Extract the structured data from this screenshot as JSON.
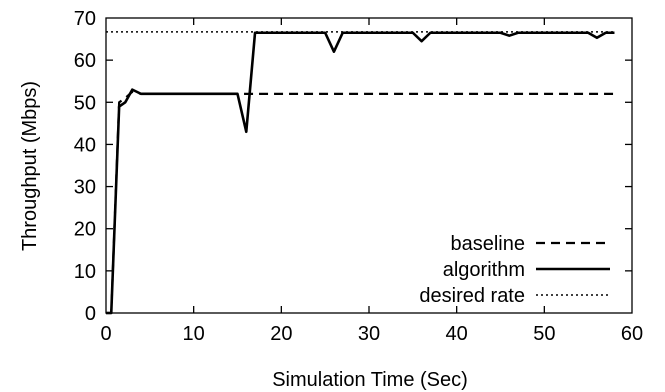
{
  "chart_data": {
    "type": "line",
    "xlabel": "Simulation Time (Sec)",
    "ylabel": "Throughput (Mbps)",
    "xlim": [
      0,
      60
    ],
    "ylim": [
      0,
      70
    ],
    "xticks": [
      "0",
      "10",
      "20",
      "30",
      "40",
      "50",
      "60"
    ],
    "yticks": [
      "0",
      "10",
      "20",
      "30",
      "40",
      "50",
      "60",
      "70"
    ],
    "grid": false,
    "legend_position": "bottom-right",
    "series": [
      {
        "name": "baseline",
        "style": "dashed",
        "color": "#000000",
        "x": [
          0,
          0.6,
          1.5,
          2.2,
          3,
          4,
          58
        ],
        "y": [
          0,
          0,
          50,
          51,
          52.5,
          52,
          52
        ]
      },
      {
        "name": "algorithm",
        "style": "solid",
        "color": "#000000",
        "x": [
          0,
          0.6,
          1.5,
          2.2,
          3,
          4,
          10,
          15,
          16,
          17,
          20,
          25,
          26,
          27,
          30,
          35,
          36,
          37,
          40,
          45,
          46,
          47,
          50,
          55,
          56,
          57,
          58
        ],
        "y": [
          0,
          0,
          49,
          50,
          53,
          52,
          52,
          52,
          43,
          66.5,
          66.5,
          66.5,
          62,
          66.5,
          66.5,
          66.5,
          64.5,
          66.5,
          66.5,
          66.5,
          65.8,
          66.5,
          66.5,
          66.5,
          65.3,
          66.5,
          66.5
        ]
      },
      {
        "name": "desired rate",
        "style": "dotted",
        "color": "#000000",
        "x": [
          0,
          58
        ],
        "y": [
          66.7,
          66.7
        ]
      }
    ]
  }
}
